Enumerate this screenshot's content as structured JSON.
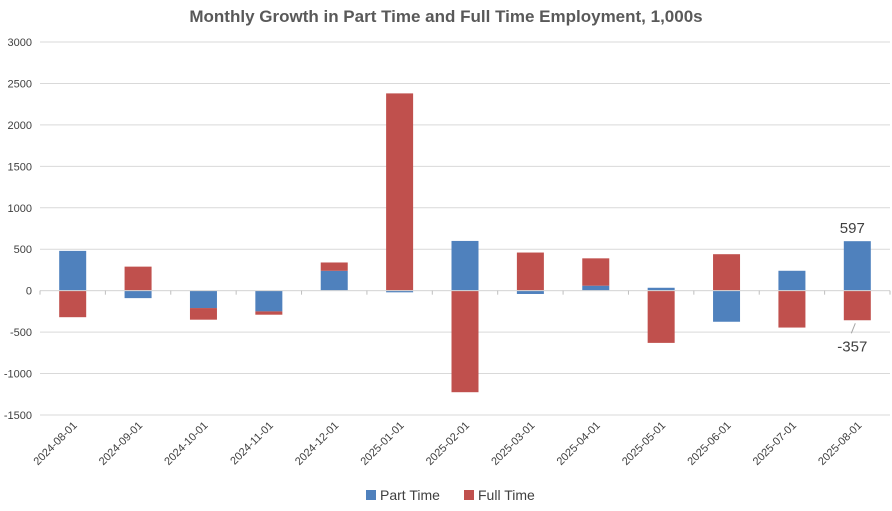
{
  "chart_data": {
    "type": "bar",
    "stacked": true,
    "title": "Monthly Growth in Part Time and Full Time Employment, 1,000s",
    "xlabel": "",
    "ylabel": "",
    "ylim": [
      -1500,
      3000
    ],
    "yticks": [
      "3000",
      "2500",
      "2000",
      "1500",
      "1000",
      "500",
      "0",
      "-500",
      "-1000",
      "-1500"
    ],
    "ytick_values": [
      3000,
      2500,
      2000,
      1500,
      1000,
      500,
      0,
      -500,
      -1000,
      -1500
    ],
    "grid": true,
    "legend_position": "bottom",
    "categories": [
      "2024-08-01",
      "2024-09-01",
      "2024-10-01",
      "2024-11-01",
      "2024-12-01",
      "2025-01-01",
      "2025-02-01",
      "2025-03-01",
      "2025-04-01",
      "2025-05-01",
      "2025-06-01",
      "2025-07-01",
      "2025-08-01"
    ],
    "series": [
      {
        "name": "Part Time",
        "color": "#4f81bd",
        "values": [
          480,
          -90,
          -210,
          -250,
          240,
          -20,
          600,
          -40,
          60,
          35,
          -375,
          240,
          597
        ]
      },
      {
        "name": "Full Time",
        "color": "#c0504d",
        "values": [
          -320,
          290,
          -140,
          -40,
          100,
          2380,
          -1225,
          460,
          330,
          -630,
          440,
          -445,
          -357
        ]
      }
    ],
    "data_labels": [
      {
        "series": "Part Time",
        "category": "2025-08-01",
        "text": "597"
      },
      {
        "series": "Full Time",
        "category": "2025-08-01",
        "text": "-357"
      }
    ]
  }
}
